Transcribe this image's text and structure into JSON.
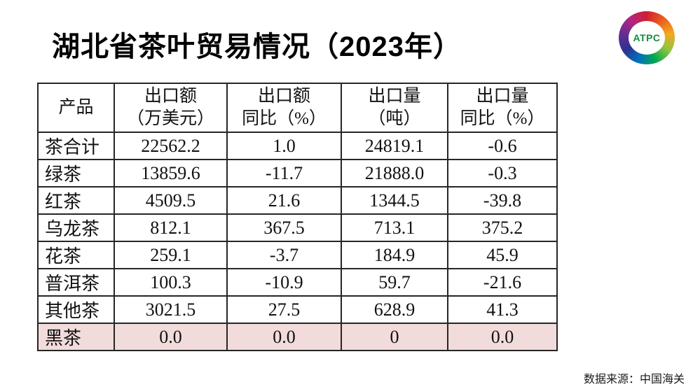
{
  "title": "湖北省茶叶贸易情况（2023年）",
  "logo": {
    "text": "ATPC",
    "text_color": "#168c3f",
    "ring_colors": [
      "#cf2030",
      "#e85d1f",
      "#f5a81c",
      "#8dc63f",
      "#00a651",
      "#0072bc",
      "#2e3192",
      "#662d91",
      "#b4257f",
      "#cf2030"
    ]
  },
  "table": {
    "headers": [
      {
        "line1": "产品",
        "line2": ""
      },
      {
        "line1": "出口额",
        "line2": "（万美元）"
      },
      {
        "line1": "出口额",
        "line2": "同比（%）"
      },
      {
        "line1": "出口量",
        "line2": "（吨）"
      },
      {
        "line1": "出口量",
        "line2": "同比（%）"
      }
    ]
  },
  "chart_data": {
    "type": "table",
    "title": "湖北省茶叶贸易情况（2023年）",
    "columns": [
      "产品",
      "出口额（万美元）",
      "出口额同比（%）",
      "出口量（吨）",
      "出口量同比（%）"
    ],
    "rows": [
      [
        "茶合计",
        "22562.2",
        "1.0",
        "24819.1",
        "-0.6"
      ],
      [
        "绿茶",
        "13859.6",
        "-11.7",
        "21888.0",
        "-0.3"
      ],
      [
        "红茶",
        "4509.5",
        "21.6",
        "1344.5",
        "-39.8"
      ],
      [
        "乌龙茶",
        "812.1",
        "367.5",
        "713.1",
        "375.2"
      ],
      [
        "花茶",
        "259.1",
        "-3.7",
        "184.9",
        "45.9"
      ],
      [
        "普洱茶",
        "100.3",
        "-10.9",
        "59.7",
        "-21.6"
      ],
      [
        "其他茶",
        "3021.5",
        "27.5",
        "628.9",
        "41.3"
      ],
      [
        "黑茶",
        "0.0",
        "0.0",
        "0",
        "0.0"
      ]
    ],
    "highlighted_row": "黑茶",
    "highlight_color": "#f2dcdb"
  },
  "source": "数据来源：中国海关"
}
